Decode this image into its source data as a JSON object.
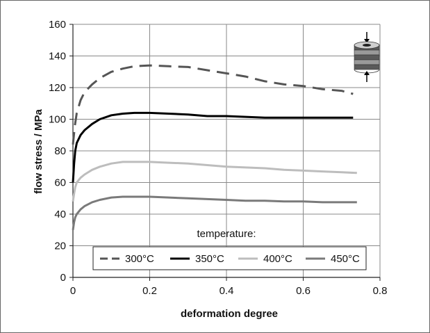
{
  "chart_data": {
    "type": "line",
    "xlabel": "deformation degree",
    "ylabel": "flow stress / MPa",
    "xlim": [
      0,
      0.8
    ],
    "ylim": [
      0,
      160
    ],
    "x_ticks": [
      "0",
      "0.2",
      "0.4",
      "0.6",
      "0.8"
    ],
    "y_ticks": [
      "0",
      "20",
      "40",
      "60",
      "80",
      "100",
      "120",
      "140",
      "160"
    ],
    "grid": "major x and y",
    "legend": {
      "title": "temperature:",
      "placement": "bottom-inside",
      "entries": [
        "300°C",
        "350°C",
        "400°C",
        "450°C"
      ]
    },
    "series": [
      {
        "name": "300°C",
        "color": "#555555",
        "style": "dashed",
        "x": [
          0.0,
          0.005,
          0.01,
          0.02,
          0.03,
          0.05,
          0.07,
          0.1,
          0.13,
          0.16,
          0.2,
          0.25,
          0.3,
          0.35,
          0.4,
          0.45,
          0.5,
          0.55,
          0.6,
          0.65,
          0.7,
          0.73
        ],
        "y": [
          84,
          96,
          104,
          112,
          117,
          122,
          126,
          130,
          132,
          133.5,
          134,
          133.5,
          133,
          131,
          129,
          127,
          124,
          122,
          121,
          119,
          118,
          116
        ]
      },
      {
        "name": "350°C",
        "color": "#000000",
        "style": "solid",
        "x": [
          0.0,
          0.003,
          0.006,
          0.01,
          0.02,
          0.03,
          0.05,
          0.07,
          0.1,
          0.13,
          0.16,
          0.2,
          0.25,
          0.3,
          0.35,
          0.4,
          0.45,
          0.5,
          0.55,
          0.6,
          0.65,
          0.7,
          0.73
        ],
        "y": [
          60,
          72,
          80,
          85,
          90,
          93,
          97,
          100,
          102.5,
          103.5,
          104,
          104,
          103.5,
          103,
          102,
          102,
          101.5,
          101,
          101,
          101,
          101,
          101,
          101
        ]
      },
      {
        "name": "400°C",
        "color": "#bdbdbd",
        "style": "solid",
        "x": [
          0.0,
          0.003,
          0.006,
          0.01,
          0.02,
          0.03,
          0.05,
          0.07,
          0.1,
          0.13,
          0.16,
          0.2,
          0.25,
          0.3,
          0.35,
          0.4,
          0.45,
          0.5,
          0.55,
          0.6,
          0.65,
          0.7,
          0.74
        ],
        "y": [
          48,
          53,
          57,
          60,
          63,
          65,
          68,
          70,
          72,
          73,
          73,
          73,
          72.5,
          72,
          71,
          70,
          69.5,
          69,
          68,
          67.5,
          67,
          66.5,
          66
        ]
      },
      {
        "name": "450°C",
        "color": "#7a7a7a",
        "style": "solid",
        "x": [
          0.0,
          0.003,
          0.006,
          0.01,
          0.02,
          0.03,
          0.05,
          0.07,
          0.1,
          0.13,
          0.16,
          0.2,
          0.25,
          0.3,
          0.35,
          0.4,
          0.45,
          0.5,
          0.55,
          0.6,
          0.65,
          0.7,
          0.74
        ],
        "y": [
          30,
          35,
          38,
          40,
          43,
          45,
          47.5,
          49,
          50.5,
          51,
          51,
          51,
          50.5,
          50,
          49.5,
          49,
          48.5,
          48.5,
          48,
          48,
          47.5,
          47.5,
          47.5
        ]
      }
    ]
  },
  "colors": {
    "grid": "#888888",
    "specimen_fill": "#9a9a9a",
    "specimen_band": "#5a5a5a"
  },
  "icons": {
    "specimen": "compressed-disc-stack-icon"
  }
}
